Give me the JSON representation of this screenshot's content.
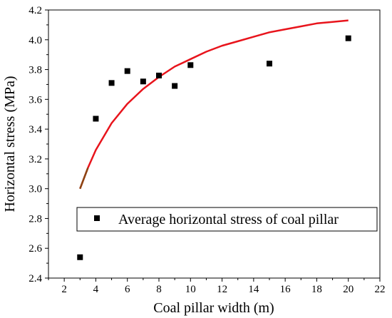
{
  "chart_data": {
    "type": "scatter",
    "xlabel": "Coal pillar width (m)",
    "ylabel": "Horizontal stress (MPa)",
    "xlim": [
      1,
      22
    ],
    "ylim": [
      2.4,
      4.2
    ],
    "x_ticks": [
      "2",
      "4",
      "6",
      "8",
      "10",
      "12",
      "14",
      "16",
      "18",
      "20",
      "22"
    ],
    "y_ticks": [
      "2.4",
      "2.6",
      "2.8",
      "3.0",
      "3.2",
      "3.4",
      "3.6",
      "3.8",
      "4.0",
      "4.2"
    ],
    "grid": false,
    "legend_position": "lower-right",
    "series": [
      {
        "name": "Average horizontal stress of coal pillar",
        "marker": "square",
        "color": "#000000",
        "x": [
          3,
          4,
          5,
          6,
          7,
          8,
          9,
          10,
          15,
          20
        ],
        "y": [
          2.54,
          3.47,
          3.71,
          3.79,
          3.72,
          3.76,
          3.69,
          3.83,
          3.84,
          4.01
        ]
      }
    ],
    "fit_curve": {
      "color": "#e8141c",
      "start_color": "#8b4513",
      "x": [
        3,
        3.5,
        4,
        5,
        6,
        7,
        8,
        9,
        10,
        11,
        12,
        13,
        14,
        15,
        16,
        17,
        18,
        19,
        20
      ],
      "y": [
        3.0,
        3.14,
        3.26,
        3.44,
        3.57,
        3.67,
        3.75,
        3.82,
        3.87,
        3.92,
        3.96,
        3.99,
        4.02,
        4.05,
        4.07,
        4.09,
        4.11,
        4.12,
        4.13
      ]
    }
  }
}
